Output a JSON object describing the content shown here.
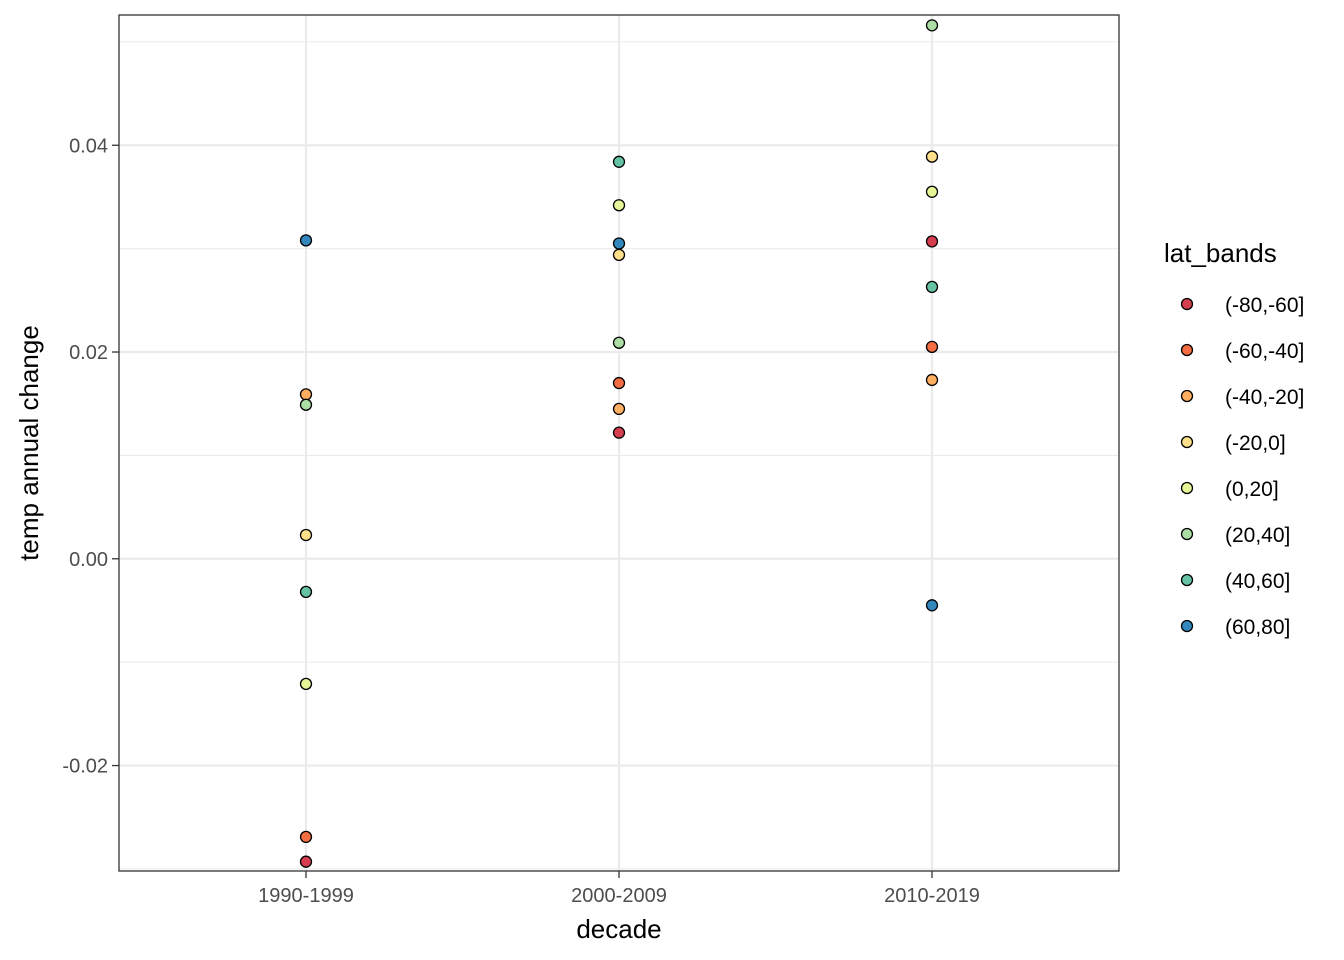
{
  "chart_data": {
    "type": "scatter",
    "title": "",
    "xlabel": "decade",
    "ylabel": "temp annual change",
    "categories": [
      "1990-1999",
      "2000-2009",
      "2010-2019"
    ],
    "ylim": [
      -0.0302,
      0.0526
    ],
    "yticks": [
      -0.02,
      0.0,
      0.02,
      0.04
    ],
    "ytick_labels": [
      "-0.02",
      "0.00",
      "0.02",
      "0.04"
    ],
    "grid": true,
    "legend": {
      "title": "lat_bands",
      "position": "right"
    },
    "series": [
      {
        "name": "(-80,-60]",
        "color": "#d53e4f",
        "values": [
          -0.0293,
          0.0122,
          0.0307
        ]
      },
      {
        "name": "(-60,-40]",
        "color": "#f46d43",
        "values": [
          -0.0269,
          0.017,
          0.0205
        ]
      },
      {
        "name": "(-40,-20]",
        "color": "#fdae61",
        "values": [
          0.0159,
          0.0145,
          0.0173
        ]
      },
      {
        "name": "(-20,0]",
        "color": "#fee08b",
        "values": [
          0.0023,
          0.0294,
          0.0389
        ]
      },
      {
        "name": "(0,20]",
        "color": "#e6f598",
        "values": [
          -0.0121,
          0.0342,
          0.0355
        ]
      },
      {
        "name": "(20,40]",
        "color": "#abdda4",
        "values": [
          0.0149,
          0.0209,
          0.0516
        ]
      },
      {
        "name": "(40,60]",
        "color": "#66c2a5",
        "values": [
          -0.0032,
          0.0384,
          0.0263
        ]
      },
      {
        "name": "(60,80]",
        "color": "#3288bd",
        "values": [
          0.0308,
          0.0305,
          -0.0045
        ]
      }
    ]
  }
}
